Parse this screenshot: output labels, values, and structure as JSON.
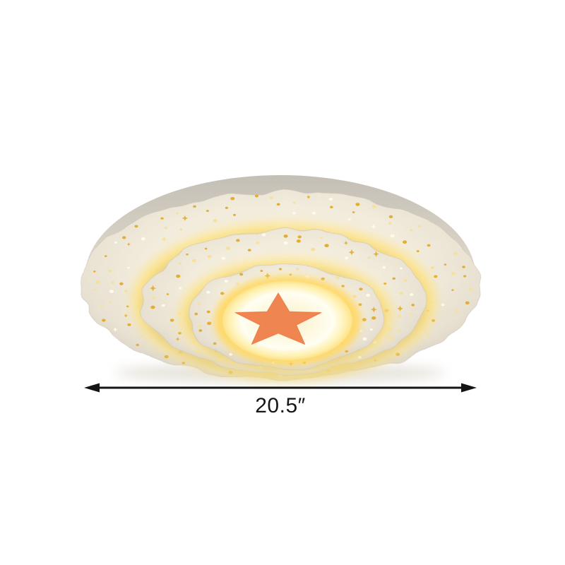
{
  "product_photo": {
    "subject": "scalloped-flush-mount-led-ceiling-light",
    "decoration": "five-pointed-star-decal",
    "dimension": {
      "label": "20.5″",
      "annotation": "double-headed-horizontal-arrow"
    }
  },
  "icons": {
    "star": "star-icon",
    "dimension_arrow": "arrow-both-ends-icon",
    "sparkle_cutouts": "sparkle-dot-perforations"
  },
  "colors": {
    "background": "#ffffff",
    "backplate_top": "#c4bfb5",
    "backplate_bottom": "#efeadf",
    "tier_light": "#fdf6e4",
    "tier_edge": "#d6cfc0",
    "tier_stroke": "#cfc7b8",
    "glow_strong": "#ffe27a",
    "glow_inner": "#ffd966",
    "disc_center": "#fbf0c8",
    "disc_mid": "#fffef2",
    "disc_edge": "#fbdc7a",
    "dot_gold": "#e2ae35",
    "dot_pale": "#f6e09a",
    "dot_white": "#fffbea",
    "star_fill": "#ef8550",
    "star_edge": "#e8743e",
    "shadow": "#c9c2b2",
    "arrow": "#141414",
    "label_text": "#161616"
  }
}
